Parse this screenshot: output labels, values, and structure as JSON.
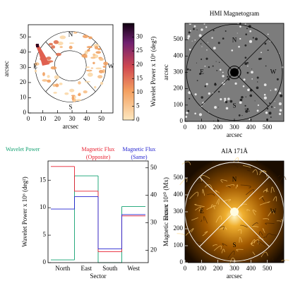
{
  "chart_data": [
    {
      "type": "image",
      "xlabel": "arcsec",
      "ylabel": "arcsec",
      "xlim": [
        0,
        58
      ],
      "ylim": [
        0,
        58
      ],
      "xticks": [
        0,
        10,
        20,
        30,
        40,
        50
      ],
      "yticks": [
        0,
        10,
        20,
        30,
        40,
        50
      ],
      "annotations": [
        "N",
        "E",
        "W",
        "S"
      ],
      "colorbar": {
        "label": "Wavelet Power x 10⁶ (deg²)",
        "lim": [
          0,
          35
        ],
        "ticks": [
          0,
          5,
          10,
          15,
          20,
          25,
          30
        ]
      }
    },
    {
      "type": "image",
      "title": "HMI Magnetogram",
      "xlabel": "arcsec",
      "ylabel": "arcsec",
      "xlim": [
        0,
        600
      ],
      "ylim": [
        0,
        600
      ],
      "xticks": [
        0,
        100,
        200,
        300,
        400,
        500
      ],
      "yticks": [
        0,
        100,
        200,
        300,
        400,
        500
      ],
      "annotations": [
        "N",
        "E",
        "W",
        "S"
      ]
    },
    {
      "type": "step",
      "xlabel": "Sector",
      "categories": [
        "North",
        "East",
        "South",
        "West"
      ],
      "ylabel": "Wavelet Power x 10⁶ (deg²)",
      "y2label": "Magnetic Flux x 10²⁰ (Mx)",
      "ylim": [
        0,
        18.5
      ],
      "yticks": [
        0,
        5,
        10,
        15
      ],
      "y2lim": [
        15.5,
        52.5
      ],
      "y2ticks": [
        20,
        30,
        40,
        50
      ],
      "series": [
        {
          "name": "Wavelet Power",
          "color": "#10a070",
          "values": [
            0.5,
            15.8,
            0,
            10.2
          ]
        },
        {
          "name": "Magnetic Flux (Opposite)",
          "color": "#e82030",
          "axis": "y2",
          "values": [
            50.5,
            41.5,
            19.5,
            32.5
          ]
        },
        {
          "name": "Magnetic Flux (Same)",
          "color": "#2424d0",
          "axis": "y2",
          "values": [
            35,
            39.5,
            20.5,
            33
          ]
        }
      ]
    },
    {
      "type": "image",
      "title": "AIA 171Å",
      "xlabel": "arcsec",
      "ylabel": "arcsec",
      "xlim": [
        0,
        600
      ],
      "ylim": [
        0,
        600
      ],
      "xticks": [
        0,
        100,
        200,
        300,
        400,
        500
      ],
      "yticks": [
        0,
        100,
        200,
        300,
        400,
        500
      ],
      "annotations": [
        "N",
        "E",
        "W",
        "S"
      ]
    }
  ]
}
